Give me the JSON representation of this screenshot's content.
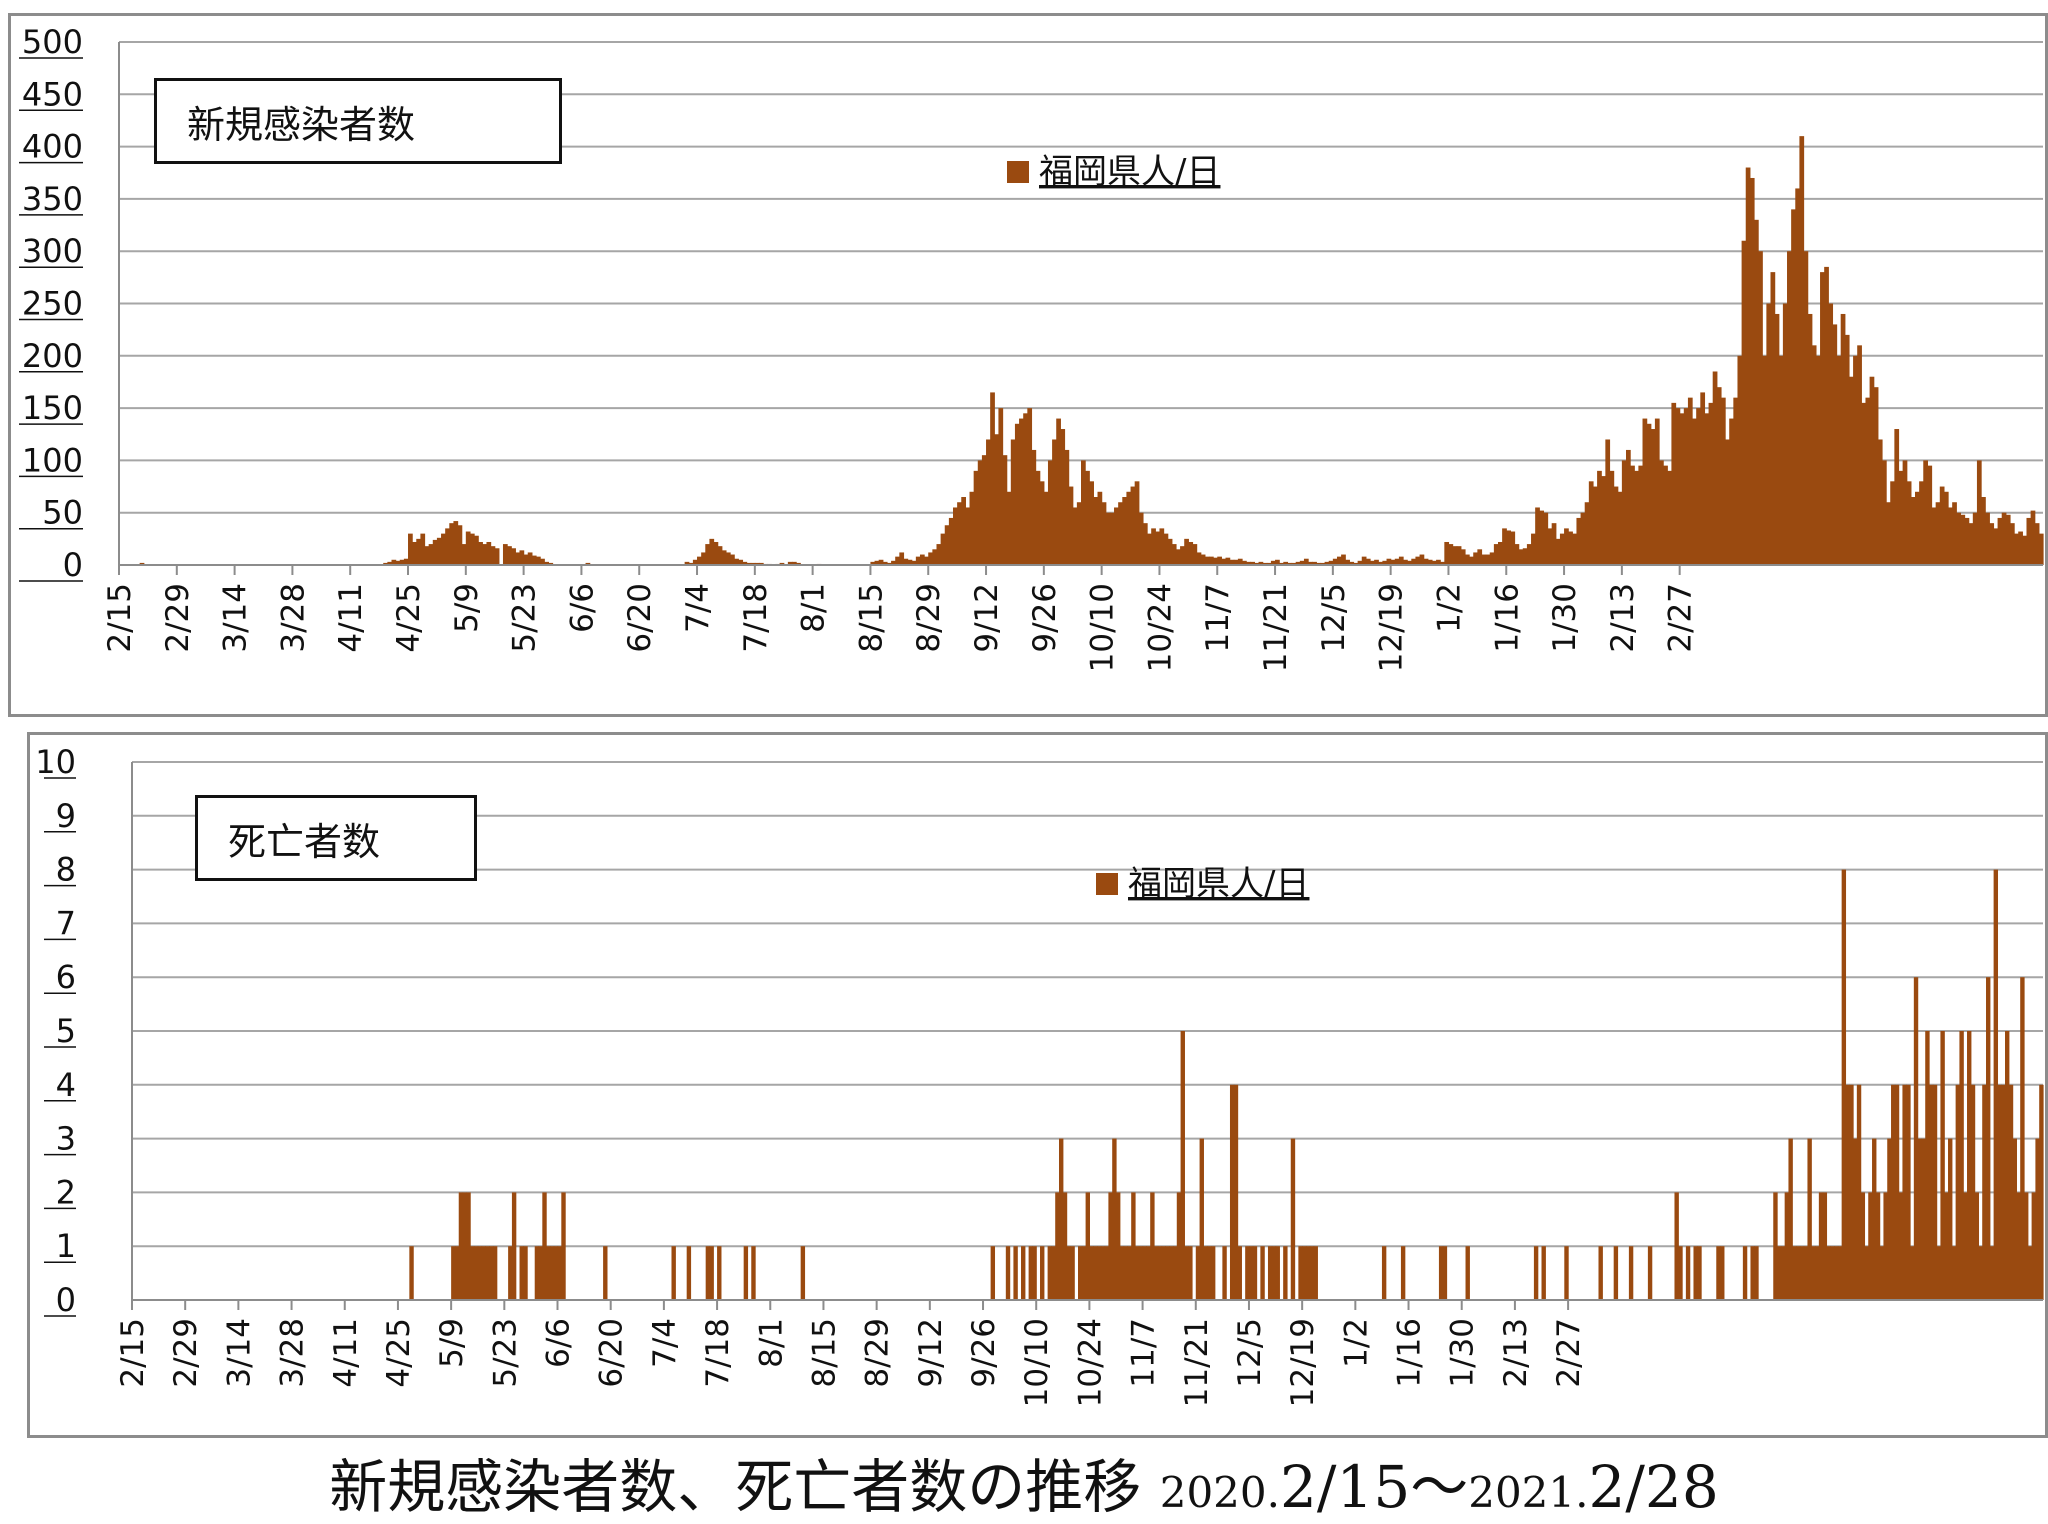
{
  "caption": {
    "main": "新規感染者数、死亡者数の推移",
    "y1": "2020.",
    "range1": "2/15～",
    "y2": "2021.",
    "range2": "2/28"
  },
  "colors": {
    "bar": "#9a4a10",
    "grid": "#a6a6a6",
    "axis": "#8c8c8c"
  },
  "chart_data": [
    {
      "type": "bar",
      "title": "新規感染者数",
      "legend": "福岡県人/日",
      "legend_position": "top-center",
      "grid": true,
      "x_start": "2020-02-15",
      "x_end": "2021-02-28",
      "x_tick_labels": [
        "2/15",
        "2/29",
        "3/14",
        "3/28",
        "4/11",
        "4/25",
        "5/9",
        "5/23",
        "6/6",
        "6/20",
        "7/4",
        "7/18",
        "8/1",
        "8/15",
        "8/29",
        "9/12",
        "9/26",
        "10/10",
        "10/24",
        "11/7",
        "11/21",
        "12/5",
        "12/19",
        "1/2",
        "1/16",
        "1/30",
        "2/13",
        "2/27"
      ],
      "ylim": [
        0,
        500
      ],
      "y_ticks": [
        0,
        50,
        100,
        150,
        200,
        250,
        300,
        350,
        400,
        450,
        500
      ],
      "values": [
        0,
        0,
        0,
        0,
        0,
        2,
        0,
        0,
        0,
        0,
        0,
        0,
        0,
        0,
        0,
        0,
        0,
        0,
        0,
        0,
        0,
        0,
        0,
        0,
        0,
        0,
        0,
        0,
        0,
        0,
        0,
        0,
        0,
        0,
        0,
        0,
        0,
        0,
        0,
        0,
        0,
        0,
        0,
        0,
        0,
        0,
        0,
        0,
        0,
        0,
        0,
        0,
        0,
        0,
        0,
        0,
        0,
        0,
        0,
        0,
        0,
        0,
        0,
        0,
        2,
        3,
        5,
        4,
        5,
        6,
        30,
        22,
        25,
        30,
        18,
        20,
        24,
        26,
        30,
        35,
        40,
        42,
        38,
        20,
        32,
        30,
        28,
        22,
        20,
        22,
        18,
        16,
        0,
        20,
        18,
        16,
        12,
        14,
        10,
        12,
        9,
        8,
        6,
        3,
        2,
        0,
        0,
        0,
        0,
        0,
        0,
        0,
        0,
        2,
        0,
        0,
        0,
        0,
        0,
        0,
        0,
        0,
        0,
        0,
        0,
        0,
        0,
        0,
        0,
        0,
        0,
        0,
        0,
        0,
        0,
        0,
        0,
        3,
        2,
        5,
        8,
        12,
        20,
        25,
        22,
        18,
        14,
        12,
        10,
        6,
        5,
        3,
        2,
        2,
        2,
        2,
        1,
        1,
        0,
        1,
        2,
        0,
        3,
        3,
        2,
        0,
        0,
        0,
        0,
        1,
        0,
        0,
        0,
        0,
        0,
        0,
        0,
        0,
        0,
        0,
        0,
        0,
        3,
        4,
        5,
        3,
        2,
        4,
        8,
        12,
        6,
        5,
        4,
        8,
        10,
        8,
        12,
        15,
        20,
        30,
        38,
        45,
        55,
        60,
        65,
        55,
        70,
        90,
        100,
        105,
        120,
        165,
        125,
        150,
        105,
        70,
        120,
        135,
        140,
        145,
        150,
        110,
        90,
        80,
        70,
        100,
        120,
        140,
        130,
        110,
        75,
        55,
        60,
        100,
        90,
        80,
        65,
        70,
        60,
        50,
        50,
        55,
        60,
        65,
        70,
        75,
        80,
        50,
        40,
        30,
        35,
        32,
        35,
        30,
        25,
        20,
        15,
        18,
        25,
        22,
        20,
        12,
        10,
        8,
        8,
        7,
        8,
        6,
        7,
        5,
        5,
        6,
        4,
        3,
        3,
        2,
        3,
        2,
        2,
        4,
        5,
        2,
        3,
        2,
        2,
        3,
        4,
        6,
        3,
        3,
        2,
        2,
        3,
        4,
        6,
        8,
        10,
        5,
        3,
        2,
        4,
        8,
        6,
        4,
        5,
        3,
        4,
        6,
        5,
        6,
        8,
        5,
        4,
        6,
        8,
        10,
        6,
        5,
        4,
        5,
        3,
        22,
        20,
        18,
        18,
        15,
        10,
        8,
        12,
        15,
        10,
        10,
        12,
        20,
        22,
        35,
        33,
        32,
        20,
        15,
        16,
        20,
        30,
        55,
        52,
        50,
        35,
        40,
        25,
        30,
        35,
        32,
        30,
        45,
        50,
        60,
        80,
        75,
        90,
        85,
        120,
        90,
        75,
        70,
        100,
        110,
        95,
        90,
        95,
        140,
        135,
        130,
        140,
        100,
        95,
        90,
        155,
        150,
        145,
        150,
        160,
        140,
        150,
        165,
        145,
        155,
        185,
        170,
        160,
        120,
        140,
        160,
        200,
        310,
        380,
        370,
        330,
        300,
        200,
        250,
        280,
        240,
        200,
        250,
        300,
        340,
        360,
        410,
        300,
        240,
        210,
        200,
        280,
        285,
        250,
        230,
        200,
        240,
        220,
        180,
        200,
        210,
        155,
        160,
        180,
        170,
        120,
        100,
        60,
        80,
        130,
        90,
        100,
        80,
        65,
        70,
        80,
        100,
        95,
        55,
        60,
        75,
        70,
        55,
        60,
        50,
        48,
        45,
        40,
        50,
        100,
        65,
        50,
        40,
        35,
        45,
        50,
        48,
        40,
        30,
        32,
        28,
        45,
        52,
        40,
        30
      ]
    },
    {
      "type": "bar",
      "title": "死亡者数",
      "legend": "福岡県人/日",
      "legend_position": "top-center",
      "grid": true,
      "x_start": "2020-02-15",
      "x_end": "2021-02-28",
      "x_tick_labels": [
        "2/15",
        "2/29",
        "3/14",
        "3/28",
        "4/11",
        "4/25",
        "5/9",
        "5/23",
        "6/6",
        "6/20",
        "7/4",
        "7/18",
        "8/1",
        "8/15",
        "8/29",
        "9/12",
        "9/26",
        "10/10",
        "10/24",
        "11/7",
        "11/21",
        "12/5",
        "12/19",
        "1/2",
        "1/16",
        "1/30",
        "2/13",
        "2/27"
      ],
      "ylim": [
        0,
        10
      ],
      "y_ticks": [
        0,
        1,
        2,
        3,
        4,
        5,
        6,
        7,
        8,
        9,
        10
      ],
      "values": [
        0,
        0,
        0,
        0,
        0,
        0,
        0,
        0,
        0,
        0,
        0,
        0,
        0,
        0,
        0,
        0,
        0,
        0,
        0,
        0,
        0,
        0,
        0,
        0,
        0,
        0,
        0,
        0,
        0,
        0,
        0,
        0,
        0,
        0,
        0,
        0,
        0,
        0,
        0,
        0,
        0,
        0,
        0,
        0,
        0,
        0,
        0,
        0,
        0,
        0,
        0,
        0,
        0,
        0,
        0,
        0,
        0,
        0,
        0,
        0,
        0,
        0,
        0,
        0,
        0,
        0,
        0,
        0,
        0,
        0,
        0,
        0,
        0,
        1,
        0,
        0,
        0,
        0,
        0,
        0,
        0,
        0,
        0,
        0,
        1,
        1,
        2,
        2,
        2,
        1,
        1,
        1,
        1,
        1,
        1,
        1,
        0,
        0,
        0,
        1,
        2,
        0,
        1,
        1,
        0,
        0,
        1,
        1,
        2,
        1,
        1,
        1,
        1,
        2,
        0,
        0,
        0,
        0,
        0,
        0,
        0,
        0,
        0,
        0,
        1,
        0,
        0,
        0,
        0,
        0,
        0,
        0,
        0,
        0,
        0,
        0,
        0,
        0,
        0,
        0,
        0,
        0,
        1,
        0,
        0,
        0,
        1,
        0,
        0,
        0,
        0,
        1,
        1,
        0,
        1,
        0,
        0,
        0,
        0,
        0,
        0,
        1,
        0,
        1,
        0,
        0,
        0,
        0,
        0,
        0,
        0,
        0,
        0,
        0,
        0,
        0,
        1,
        0,
        0,
        0,
        0,
        0,
        0,
        0,
        0,
        0,
        0,
        0,
        0,
        0,
        0,
        0,
        0,
        0,
        0,
        0,
        0,
        0,
        0,
        0,
        0,
        0,
        0,
        0,
        0,
        0,
        0,
        0,
        0,
        0,
        0,
        0,
        0,
        0,
        0,
        0,
        0,
        0,
        0,
        0,
        0,
        0,
        0,
        0,
        0,
        0,
        1,
        0,
        0,
        0,
        1,
        0,
        1,
        0,
        1,
        0,
        1,
        1,
        0,
        1,
        0,
        1,
        1,
        2,
        3,
        2,
        1,
        1,
        0,
        1,
        1,
        2,
        1,
        1,
        1,
        1,
        1,
        2,
        3,
        2,
        1,
        1,
        1,
        2,
        1,
        1,
        1,
        1,
        2,
        1,
        1,
        1,
        1,
        1,
        1,
        2,
        5,
        1,
        1,
        0,
        1,
        3,
        1,
        1,
        1,
        0,
        0,
        1,
        0,
        4,
        4,
        1,
        0,
        1,
        1,
        1,
        0,
        1,
        0,
        1,
        1,
        1,
        0,
        1,
        0,
        3,
        0,
        1,
        1,
        1,
        1,
        1,
        0,
        0,
        0,
        0,
        0,
        0,
        0,
        0,
        0,
        0,
        0,
        0,
        0,
        0,
        0,
        0,
        0,
        1,
        0,
        0,
        0,
        0,
        1,
        0,
        0,
        0,
        0,
        0,
        0,
        0,
        0,
        0,
        1,
        1,
        0,
        0,
        0,
        0,
        0,
        1,
        0,
        0,
        0,
        0,
        0,
        0,
        0,
        0,
        0,
        0,
        0,
        0,
        0,
        0,
        0,
        0,
        0,
        1,
        0,
        1,
        0,
        0,
        0,
        0,
        0,
        1,
        0,
        0,
        0,
        0,
        0,
        0,
        0,
        0,
        1,
        0,
        0,
        0,
        1,
        0,
        0,
        0,
        1,
        0,
        0,
        0,
        0,
        1,
        0,
        0,
        0,
        0,
        0,
        0,
        2,
        1,
        0,
        1,
        0,
        1,
        1,
        0,
        0,
        0,
        0,
        1,
        1,
        0,
        0,
        0,
        0,
        0,
        1,
        0,
        1,
        1,
        0,
        0,
        0,
        0,
        2,
        1,
        1,
        2,
        3,
        1,
        1,
        1,
        1,
        3,
        1,
        1,
        2,
        2,
        1,
        1,
        1,
        1,
        8,
        4,
        4,
        3,
        4,
        2,
        1,
        2,
        3,
        2,
        1,
        2,
        3,
        4,
        4,
        2,
        4,
        4,
        1,
        6,
        3,
        3,
        5,
        4,
        4,
        1,
        5,
        2,
        3,
        1,
        4,
        5,
        2,
        5,
        4,
        2,
        1,
        4,
        6,
        1,
        8,
        4,
        4,
        5,
        4,
        3,
        2,
        6,
        2,
        1,
        2,
        3,
        4
      ]
    }
  ]
}
